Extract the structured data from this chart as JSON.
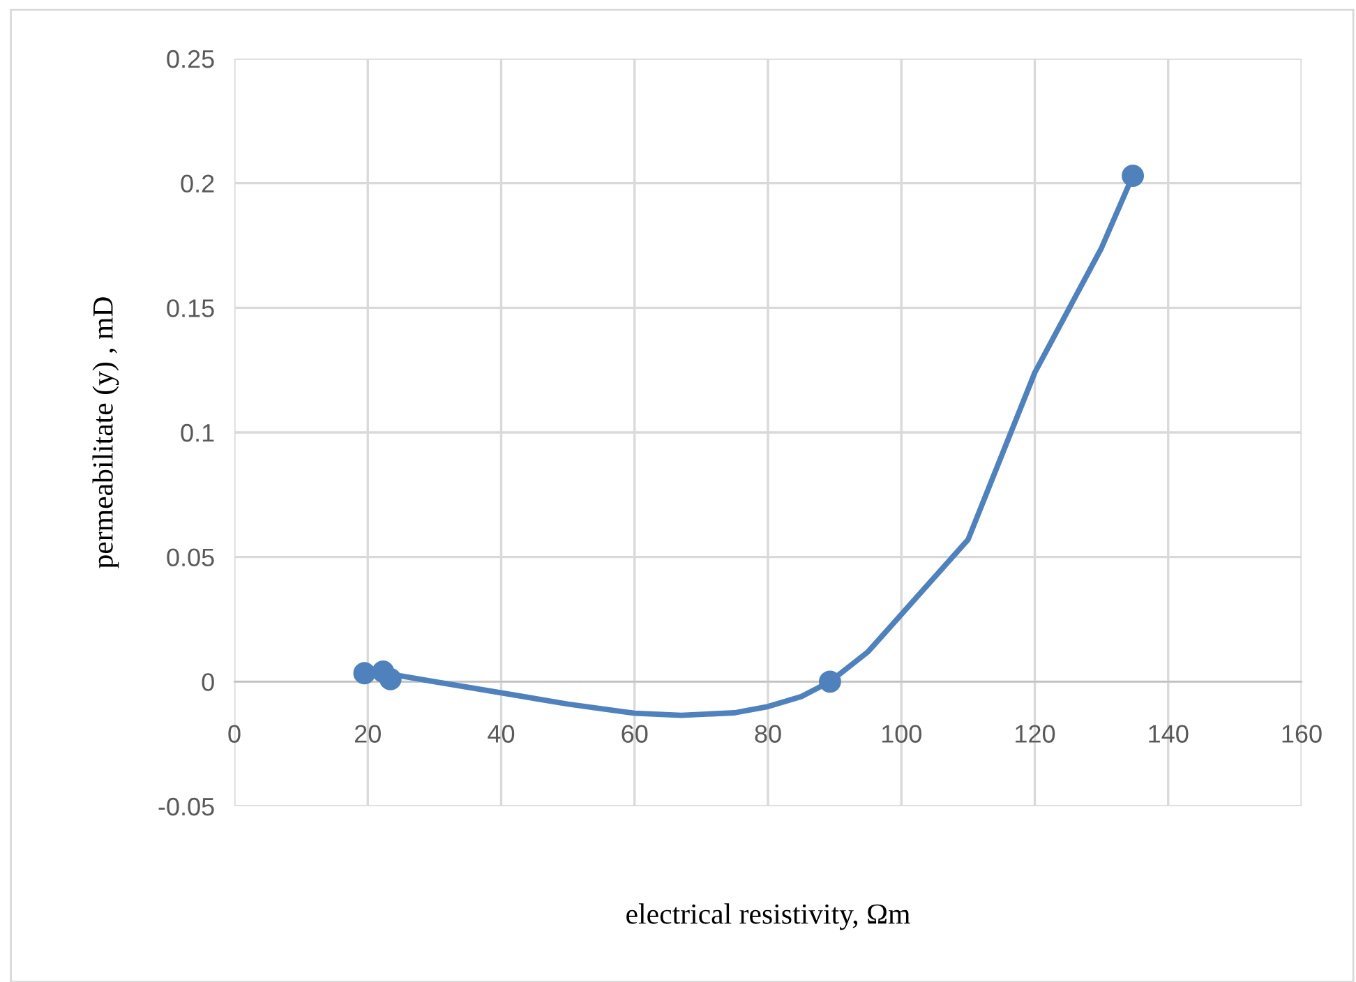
{
  "chart_data": {
    "type": "line",
    "xlabel": "electrical resistivity, Ωm",
    "ylabel": "permeabilitate (y) , mD",
    "xlim": [
      0,
      160
    ],
    "xticks": [
      0,
      20,
      40,
      60,
      80,
      100,
      120,
      140,
      160
    ],
    "ylim": [
      -0.05,
      0.25
    ],
    "yticks": [
      -0.05,
      0,
      0.05,
      0.1,
      0.15,
      0.2,
      0.25
    ],
    "grid": true,
    "legend": false,
    "series": [
      {
        "color": "#4f81bd",
        "marker": "none",
        "x": [
          23.4,
          30,
          40,
          50,
          60,
          67,
          75,
          80,
          85,
          89.3,
          95,
          100,
          110,
          120,
          130,
          134.7
        ],
        "values": [
          0.003,
          0.0,
          -0.0045,
          -0.009,
          -0.0127,
          -0.0135,
          -0.0125,
          -0.01,
          -0.006,
          0.0,
          0.012,
          0.027,
          0.057,
          0.124,
          0.174,
          0.203
        ]
      },
      {
        "type": "scatter",
        "color": "#4f81bd",
        "marker": "circle",
        "x": [
          19.5,
          22.3,
          23.4,
          89.3,
          134.7
        ],
        "values": [
          0.0034,
          0.004,
          0.001,
          0.0,
          0.203
        ]
      }
    ]
  }
}
